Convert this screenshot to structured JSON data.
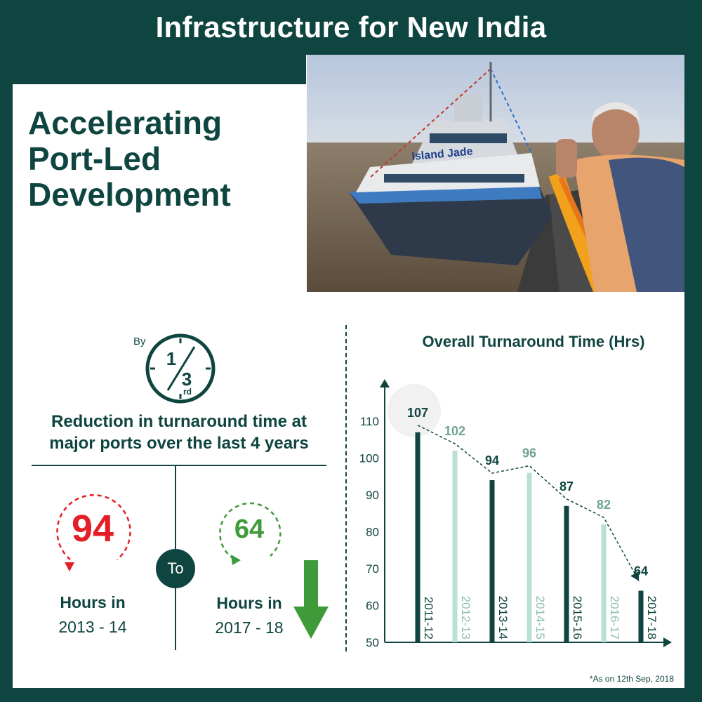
{
  "header": {
    "title": "Infrastructure for New India"
  },
  "headline": {
    "line1": "Accelerating",
    "line2": "Port-Led",
    "line3": "Development"
  },
  "photo": {
    "ship_name": "Island Jade"
  },
  "summary": {
    "by_label": "By",
    "fraction_numerator": "1",
    "fraction_denominator": "3",
    "fraction_suffix": "rd",
    "reduction_text": "Reduction in turnaround time at major ports over the last 4 years"
  },
  "comparison": {
    "from_value": "94",
    "from_label": "Hours in",
    "from_year": "2013 - 14",
    "to_label": "To",
    "to_value": "64",
    "to_label2": "Hours in",
    "to_year": "2017 - 18",
    "colors": {
      "from": "#e41e26",
      "to": "#3f9b3a"
    }
  },
  "chart_data": {
    "type": "bar",
    "title": "Overall Turnaround Time (Hrs)",
    "categories": [
      "2011-12",
      "2012-13",
      "2013-14",
      "2014-15",
      "2015-16",
      "2016-17",
      "2017-18"
    ],
    "values": [
      107,
      102,
      94,
      96,
      87,
      82,
      64
    ],
    "ylim": [
      50,
      110
    ],
    "yticks": [
      50,
      60,
      70,
      80,
      90,
      100,
      110
    ],
    "colors": [
      "#0f4540",
      "#b9e0d4",
      "#0f4540",
      "#b9e0d4",
      "#0f4540",
      "#b9e0d4",
      "#0f4540"
    ],
    "label_colors": [
      "#0f4540",
      "#6fa394",
      "#0f4540",
      "#6fa394",
      "#0f4540",
      "#6fa394",
      "#0f4540"
    ],
    "trend_line": "dashed",
    "grid": false
  },
  "footnote": "*As on 12th Sep, 2018"
}
